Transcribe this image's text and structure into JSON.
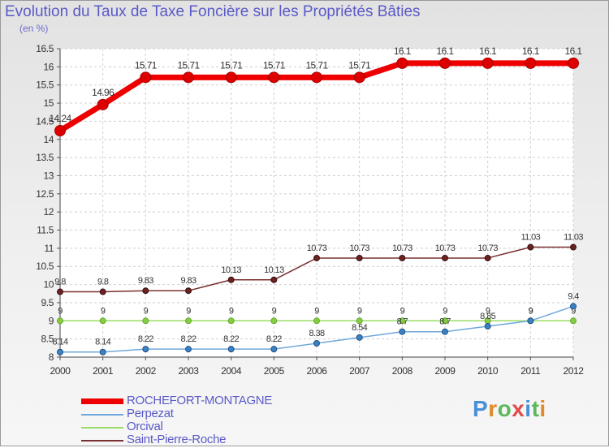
{
  "header": {
    "title": "Evolution du Taux de Taxe Foncière sur les Propriétés Bâties",
    "unit": "(en %)"
  },
  "chart_data": {
    "type": "line",
    "title": "Evolution du Taux de Taxe Foncière sur les Propriétés Bâties",
    "ylabel": "(en %)",
    "xlabel": "",
    "x": [
      "2000",
      "2001",
      "2002",
      "2003",
      "2004",
      "2005",
      "2006",
      "2007",
      "2008",
      "2009",
      "2010",
      "2011",
      "2012"
    ],
    "ylim": [
      8,
      16.5
    ],
    "yticks": [
      "8",
      "8.5",
      "9",
      "9.5",
      "10",
      "10.5",
      "11",
      "11.5",
      "12",
      "12.5",
      "13",
      "13.5",
      "14",
      "14.5",
      "15",
      "15.5",
      "16",
      "16.5"
    ],
    "legend_position": "bottom-left",
    "series": [
      {
        "name": "ROCHEFORT-MONTAGNE",
        "color": "#ee0000",
        "point_color": "#dd0000",
        "values": [
          14.24,
          14.96,
          15.71,
          15.71,
          15.71,
          15.71,
          15.71,
          15.71,
          16.1,
          16.1,
          16.1,
          16.1,
          16.1
        ],
        "labels": [
          "14.24",
          "14.96",
          "15.71",
          "15.71",
          "15.71",
          "15.71",
          "15.71",
          "15.71",
          "16.1",
          "16.1",
          "16.1",
          "16.1",
          "16.1"
        ]
      },
      {
        "name": "Perpezat",
        "color": "#6fa8dc",
        "point_color": "#3b82c4",
        "values": [
          8.14,
          8.14,
          8.22,
          8.22,
          8.22,
          8.22,
          8.38,
          8.54,
          8.7,
          8.7,
          8.85,
          9,
          9.4
        ],
        "labels": [
          "8.14",
          "8.14",
          "8.22",
          "8.22",
          "8.22",
          "8.22",
          "8.38",
          "8.54",
          "8.7",
          "8.7",
          "8.85",
          "9",
          "9.4"
        ]
      },
      {
        "name": "Orcival",
        "color": "#99dd66",
        "point_color": "#88cc44",
        "values": [
          9,
          9,
          9,
          9,
          9,
          9,
          9,
          9,
          9,
          9,
          9,
          9,
          9
        ],
        "labels": [
          "9",
          "9",
          "9",
          "9",
          "9",
          "9",
          "9",
          "9",
          "9",
          "9",
          "9",
          "9",
          "9"
        ]
      },
      {
        "name": "Saint-Pierre-Roche",
        "color": "#7a3030",
        "point_color": "#6b2222",
        "values": [
          9.8,
          9.8,
          9.83,
          9.83,
          10.13,
          10.13,
          10.73,
          10.73,
          10.73,
          10.73,
          10.73,
          11.03,
          11.03
        ],
        "labels": [
          "9.8",
          "9.8",
          "9.83",
          "9.83",
          "10.13",
          "10.13",
          "10.73",
          "10.73",
          "10.73",
          "10.73",
          "10.73",
          "11.03",
          "11.03"
        ]
      }
    ]
  },
  "legend": {
    "items": [
      {
        "label": "ROCHEFORT-MONTAGNE",
        "color": "#ee0000"
      },
      {
        "label": "Perpezat",
        "color": "#6fa8dc"
      },
      {
        "label": "Orcival",
        "color": "#99dd66"
      },
      {
        "label": "Saint-Pierre-Roche",
        "color": "#7a3030"
      }
    ]
  },
  "logo": {
    "text": "Proxiti"
  }
}
